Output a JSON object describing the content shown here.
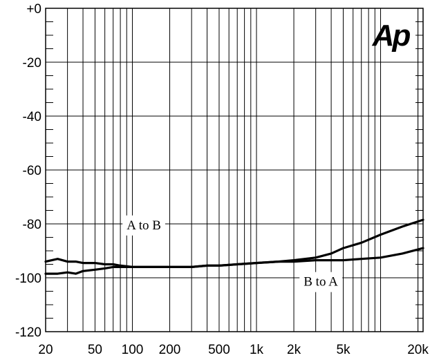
{
  "chart_data": {
    "type": "line",
    "title": "",
    "xlabel": "",
    "ylabel": "",
    "xscale": "log",
    "xlim": [
      20,
      22000
    ],
    "ylim": [
      -120,
      0
    ],
    "grid": true,
    "legend": "none",
    "logo_text": "Ap",
    "y_ticks": [
      0,
      -20,
      -40,
      -60,
      -80,
      -100,
      -120
    ],
    "y_tick_labels": [
      "+0",
      "-20",
      "-40",
      "-60",
      "-80",
      "-100",
      "-120"
    ],
    "x_ticks": [
      20,
      50,
      100,
      200,
      500,
      1000,
      2000,
      5000,
      20000
    ],
    "x_tick_labels": [
      "20",
      "50",
      "100",
      "200",
      "500",
      "1k",
      "2k",
      "5k",
      "20k"
    ],
    "annotations": [
      {
        "text": "A to B",
        "x": 90,
        "y": -82
      },
      {
        "text": "B to A",
        "x": 2400,
        "y": -103
      }
    ],
    "series": [
      {
        "x": [
          20,
          25,
          30,
          35,
          40,
          50,
          60,
          70,
          80,
          100,
          150,
          200,
          300,
          400,
          500,
          700,
          1000,
          1500,
          2000,
          3000,
          4000,
          5000,
          7000,
          10000,
          15000,
          22000
        ],
        "y": [
          -94,
          -93,
          -94,
          -94,
          -94.5,
          -94.5,
          -95,
          -95,
          -95.5,
          -96,
          -96,
          -96,
          -96,
          -95.5,
          -95.5,
          -95,
          -94.5,
          -94,
          -93.5,
          -92.5,
          -91,
          -89,
          -87,
          -84,
          -81,
          -78.5
        ]
      },
      {
        "x": [
          20,
          25,
          30,
          35,
          40,
          50,
          60,
          70,
          80,
          100,
          150,
          200,
          300,
          400,
          500,
          700,
          1000,
          1500,
          2000,
          3000,
          4000,
          5000,
          7000,
          10000,
          15000,
          22000
        ],
        "y": [
          -98.5,
          -98.5,
          -98,
          -98.5,
          -97.5,
          -97,
          -96.5,
          -96,
          -96,
          -96,
          -96,
          -96,
          -96,
          -95.5,
          -95.5,
          -95,
          -94.5,
          -94,
          -94,
          -93.5,
          -93.5,
          -93.5,
          -93,
          -92.5,
          -91,
          -89
        ]
      }
    ]
  }
}
